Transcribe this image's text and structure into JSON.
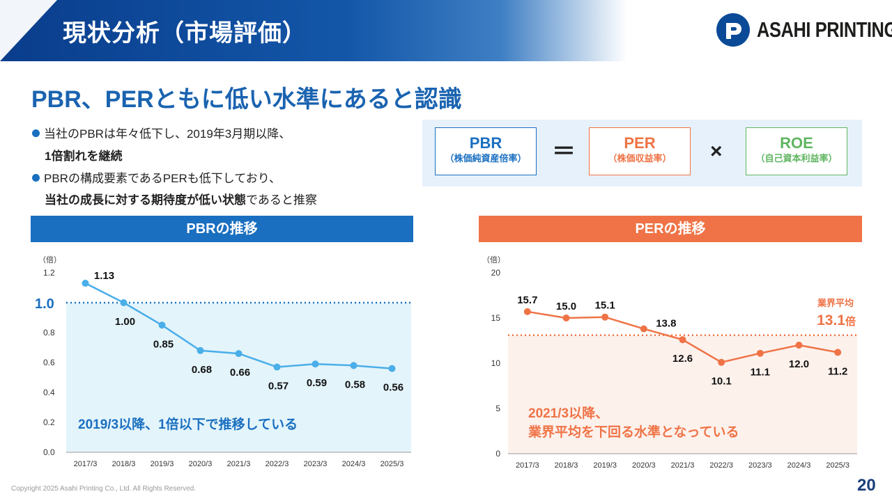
{
  "header": {
    "title": "現状分析（市場評価）"
  },
  "logo": {
    "text": "ASAHI PRINTING"
  },
  "heading": "PBR、PERともに低い水準にあると認識",
  "bullets": [
    {
      "line1": "当社のPBRは年々低下し、2019年3月期以降、",
      "line2_bold": "1倍割れを継続",
      "line2_rest": ""
    },
    {
      "line1": "PBRの構成要素であるPERも低下しており、",
      "line2_bold": "当社の成長に対する期待度が低い状態",
      "line2_rest": "であると推察"
    }
  ],
  "formula": {
    "pbr": {
      "label": "PBR",
      "sub": "（株価純資産倍率）"
    },
    "equals": "＝",
    "per": {
      "label": "PER",
      "sub": "（株価収益率）"
    },
    "times": "×",
    "roe": {
      "label": "ROE",
      "sub": "（自己資本利益率）"
    }
  },
  "colors": {
    "blue": "#1a6fc0",
    "orange": "#ef7346",
    "green": "#5fb560",
    "line_blue": "#4aaee8",
    "area_blue": "#e3f4fb",
    "area_orange": "#fdf1ec"
  },
  "copyright": "Copyright 2025 Asahi Printing Co., Ltd. All Rights Reserved.",
  "page_number": "20",
  "chart_data": [
    {
      "type": "line",
      "title": "PBRの推移",
      "unit": "（倍）",
      "categories": [
        "2017/3",
        "2018/3",
        "2019/3",
        "2020/3",
        "2021/3",
        "2022/3",
        "2023/3",
        "2024/3",
        "2025/3"
      ],
      "values": [
        1.13,
        1.0,
        0.85,
        0.68,
        0.66,
        0.57,
        0.59,
        0.58,
        0.56
      ],
      "value_labels": [
        "1.13",
        "1.00",
        "0.85",
        "0.68",
        "0.66",
        "0.57",
        "0.59",
        "0.58",
        "0.56"
      ],
      "ylim": [
        0,
        1.2
      ],
      "yticks": [
        "0.0",
        "0.2",
        "0.4",
        "0.6",
        "0.8",
        "1.0",
        "1.2"
      ],
      "reference_line": {
        "value": 1.0,
        "label": "1.0"
      },
      "annotation": "2019/3以降、1倍以下で推移している"
    },
    {
      "type": "line",
      "title": "PERの推移",
      "unit": "（倍）",
      "categories": [
        "2017/3",
        "2018/3",
        "2019/3",
        "2020/3",
        "2021/3",
        "2022/3",
        "2023/3",
        "2024/3",
        "2025/3"
      ],
      "values": [
        15.7,
        15.0,
        15.1,
        13.8,
        12.6,
        10.1,
        11.1,
        12.0,
        11.2
      ],
      "value_labels": [
        "15.7",
        "15.0",
        "15.1",
        "13.8",
        "12.6",
        "10.1",
        "11.1",
        "12.0",
        "11.2"
      ],
      "ylim": [
        0,
        20
      ],
      "yticks": [
        "0",
        "5",
        "10",
        "15",
        "20"
      ],
      "reference_line": {
        "value": 13.1,
        "label_top": "業界平均",
        "label_value": "13.1",
        "label_unit": "倍"
      },
      "annotation": [
        "2021/3以降、",
        "業界平均を下回る水準となっている"
      ]
    }
  ]
}
